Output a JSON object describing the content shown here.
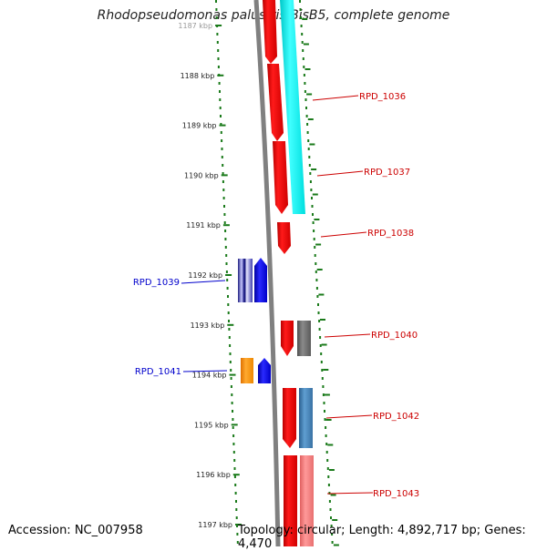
{
  "title": "Rhodopseudomonas palustris BisB5, complete genome",
  "footer": {
    "accession": "Accession: NC_007958",
    "topology": "Topology: circular; Length: 4,892,717 bp; Genes: 4,470"
  },
  "ruler": {
    "unit": "kbp",
    "ticks": [
      "1187 kbp",
      "1188 kbp",
      "1189 kbp",
      "1190 kbp",
      "1191 kbp",
      "1192 kbp",
      "1193 kbp",
      "1194 kbp",
      "1195 kbp",
      "1196 kbp",
      "1197 kbp"
    ]
  },
  "colors": {
    "forward_label": "#cc0000",
    "reverse_label": "#0000cc",
    "ruler": "#1a7a1a",
    "backbone": "#808080"
  },
  "genes": [
    {
      "label": "RPD_1036",
      "strand": "forward",
      "color": "#ff0000"
    },
    {
      "label": "RPD_1037",
      "strand": "forward",
      "color": "#ff0000"
    },
    {
      "label": "RPD_1038",
      "strand": "forward",
      "color": "#ff0000"
    },
    {
      "label": "RPD_1039",
      "strand": "reverse",
      "color": "#0000ee"
    },
    {
      "label": "RPD_1040",
      "strand": "forward",
      "color": "#ff0000"
    },
    {
      "label": "RPD_1041",
      "strand": "reverse",
      "color": "#ff8c00"
    },
    {
      "label": "RPD_1042",
      "strand": "forward",
      "color": "#ff0000"
    },
    {
      "label": "RPD_1043",
      "strand": "forward",
      "color": "#ff0000"
    }
  ]
}
